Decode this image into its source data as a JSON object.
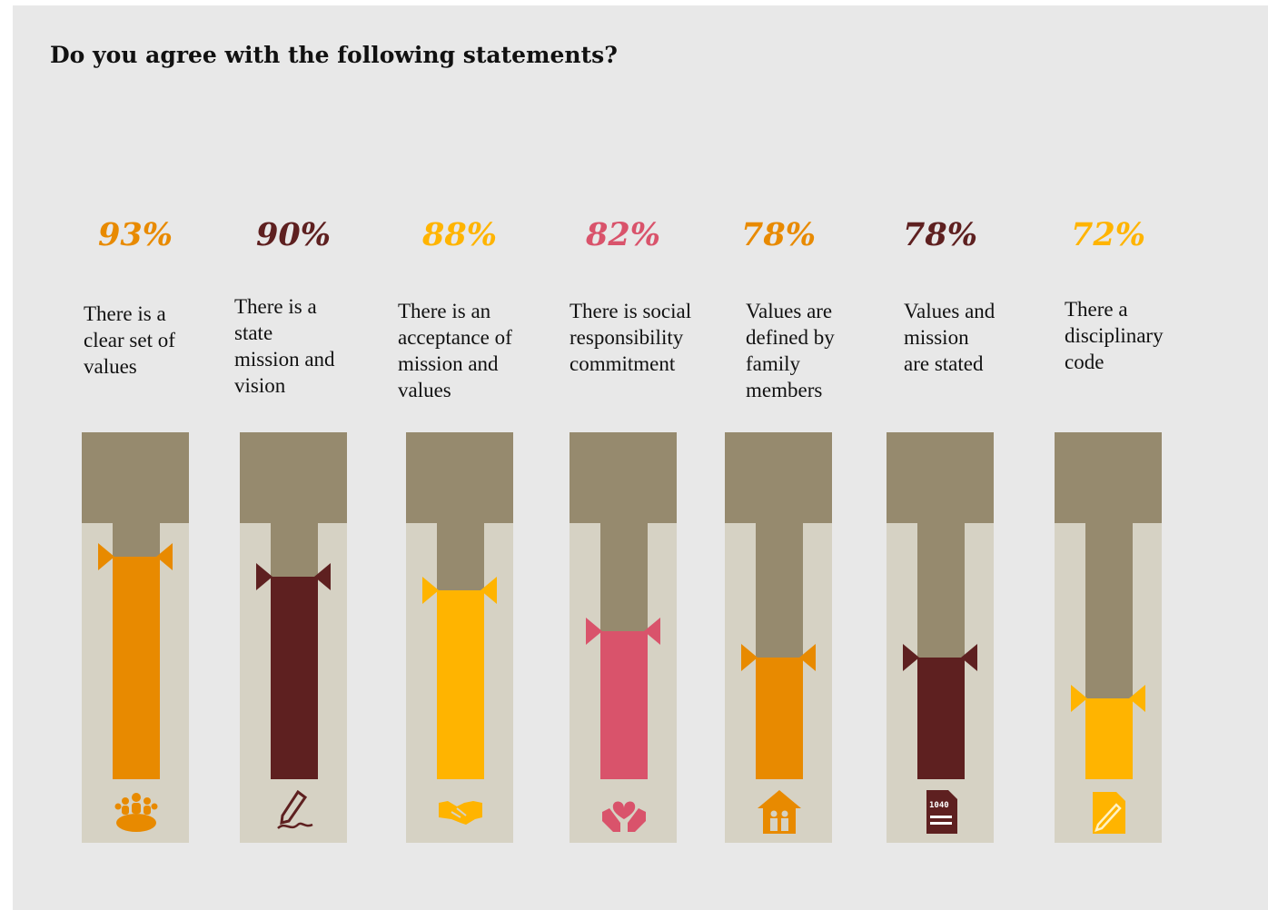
{
  "title": "Do you agree with the following statements?",
  "chart_data": {
    "type": "bar",
    "title": "Do you agree with the following statements?",
    "categories": [
      "There is a clear set of values",
      "There is a state mission and vision",
      "There is an acceptance of mission and values",
      "There is social responsibility commitment",
      "Values are defined by family members",
      "Values and mission are stated",
      "There a disciplinary code"
    ],
    "values": [
      93,
      90,
      88,
      82,
      78,
      78,
      72
    ],
    "ylim": [
      0,
      100
    ],
    "value_labels": [
      "93%",
      "90%",
      "88%",
      "82%",
      "78%",
      "78%",
      "72%"
    ],
    "label_lines": [
      "There is a\nclear set of\nvalues",
      "There is a\nstate\nmission and\nvision",
      "There is an\nacceptance of\nmission and\nvalues",
      "There is social\nresponsibility\ncommitment",
      "Values are\ndefined by\nfamily\nmembers",
      "Values and\nmission\nare stated",
      "There a\ndisciplinary\ncode"
    ],
    "colors": [
      "#e88a00",
      "#5e2020",
      "#ffb400",
      "#d9536b",
      "#e88a00",
      "#5e2020",
      "#ffb400"
    ],
    "icons": [
      "team-icon",
      "pen-signature-icon",
      "handshake-icon",
      "heart-hands-icon",
      "family-house-icon",
      "tax-form-icon",
      "document-edit-icon"
    ],
    "track_color": "#d6d2c4",
    "empty_color": "#968a6e",
    "grid": false,
    "legend": "none"
  }
}
